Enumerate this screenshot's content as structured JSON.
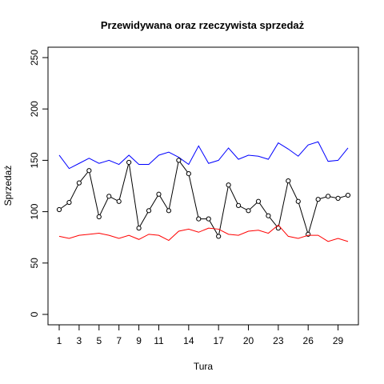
{
  "chart_data": {
    "type": "line",
    "title": "Przewidywana oraz rzeczywista sprzedaż",
    "xlabel": "Tura",
    "ylabel": "Sprzedaż",
    "xlim": [
      1,
      30
    ],
    "ylim": [
      0,
      250
    ],
    "x_ticks": [
      1,
      3,
      5,
      7,
      9,
      11,
      14,
      17,
      20,
      23,
      26,
      29
    ],
    "y_ticks": [
      0,
      50,
      100,
      150,
      200,
      250
    ],
    "grid": false,
    "x": [
      1,
      2,
      3,
      4,
      5,
      6,
      7,
      8,
      9,
      10,
      11,
      12,
      13,
      14,
      15,
      16,
      17,
      18,
      19,
      20,
      21,
      22,
      23,
      24,
      25,
      26,
      27,
      28,
      29,
      30
    ],
    "series": [
      {
        "color": "#0000ff",
        "style": "line",
        "values": [
          155,
          142,
          147,
          152,
          147,
          150,
          146,
          155,
          146,
          146,
          155,
          158,
          153,
          146,
          164,
          147,
          150,
          162,
          151,
          155,
          154,
          151,
          167,
          161,
          154,
          165,
          168,
          149,
          150,
          162
        ]
      },
      {
        "color": "#000000",
        "style": "line+points",
        "values": [
          102,
          109,
          128,
          140,
          95,
          115,
          110,
          148,
          84,
          101,
          117,
          101,
          150,
          137,
          93,
          93,
          76,
          126,
          106,
          101,
          110,
          96,
          84,
          130,
          110,
          78,
          112,
          115,
          113,
          116
        ]
      },
      {
        "color": "#ff0000",
        "style": "line",
        "values": [
          76,
          74,
          77,
          78,
          79,
          77,
          74,
          77,
          73,
          78,
          77,
          72,
          81,
          83,
          80,
          84,
          83,
          78,
          77,
          81,
          82,
          79,
          87,
          76,
          74,
          77,
          77,
          71,
          74,
          71
        ]
      }
    ]
  }
}
